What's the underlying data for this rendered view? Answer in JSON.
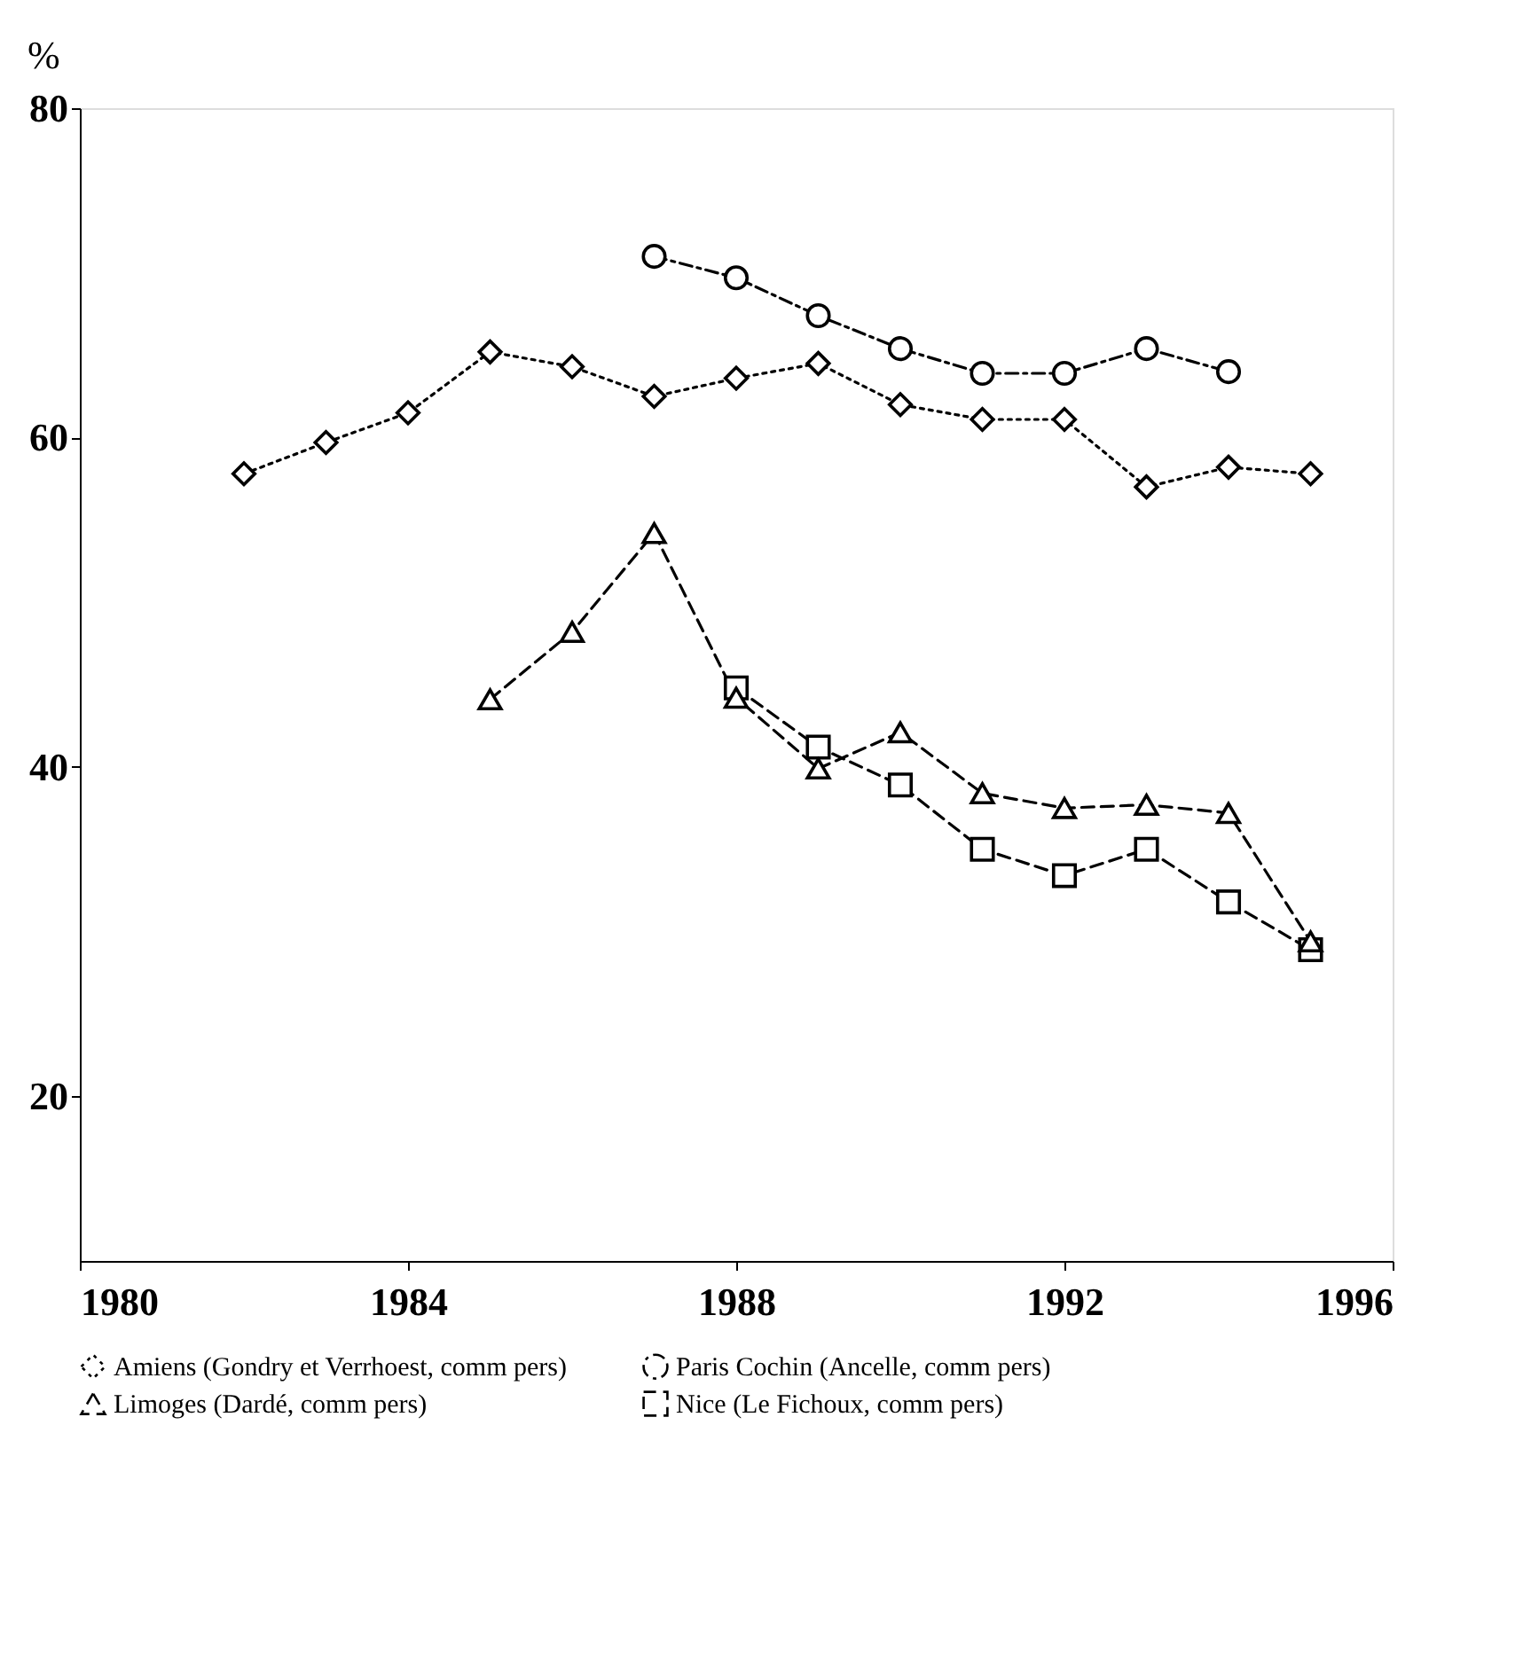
{
  "chart_data": {
    "type": "line",
    "ylabel": "%",
    "x": [
      1982,
      1983,
      1984,
      1985,
      1986,
      1987,
      1988,
      1989,
      1990,
      1991,
      1992,
      1993,
      1994,
      1995
    ],
    "series": [
      {
        "name": "Amiens (Gondry et Verrhoest, comm pers)",
        "color": "#000000",
        "marker": "diamond",
        "line_style": "dotted",
        "values": [
          57.8,
          59.7,
          61.5,
          65.2,
          64.3,
          62.5,
          63.6,
          64.5,
          62,
          61.1,
          61.1,
          57,
          58.2,
          57.8
        ]
      },
      {
        "name": "Paris Cochin (Ancelle, comm pers)",
        "color": "#000000",
        "marker": "circle",
        "line_style": "dashdot",
        "x": [
          1987,
          1988,
          1989,
          1990,
          1991,
          1992,
          1993,
          1994
        ],
        "values": [
          71,
          69.7,
          67.4,
          65.4,
          63.9,
          63.9,
          65.4,
          64
        ]
      },
      {
        "name": "Limoges (Dardé, comm pers)",
        "color": "#000000",
        "marker": "triangle",
        "line_style": "dashed",
        "x": [
          1985,
          1986,
          1987,
          1988,
          1989,
          1990,
          1991,
          1992,
          1993,
          1994,
          1995
        ],
        "values": [
          44.1,
          48.2,
          54.2,
          44.2,
          39.9,
          42.1,
          38.4,
          37.5,
          37.7,
          37.2,
          29.4
        ]
      },
      {
        "name": "Nice (Le Fichoux, comm pers)",
        "color": "#000000",
        "marker": "square",
        "line_style": "dashed",
        "x": [
          1988,
          1989,
          1990,
          1991,
          1992,
          1993,
          1994,
          1995
        ],
        "values": [
          44.8,
          41.2,
          38.9,
          35,
          33.4,
          35,
          31.8,
          28.9
        ]
      }
    ],
    "xlim": [
      1980,
      1996
    ],
    "xticks": [
      1980,
      1984,
      1988,
      1992,
      1996
    ],
    "ylim": [
      10,
      80
    ],
    "yticks": [
      20,
      40,
      60,
      80
    ],
    "grid": false,
    "legend": "bottom"
  }
}
